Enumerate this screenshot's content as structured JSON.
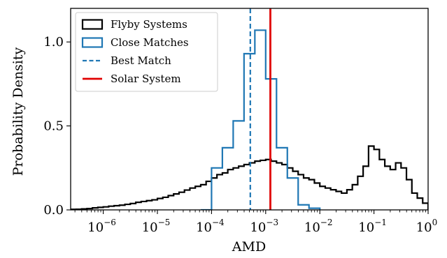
{
  "chart_data": {
    "type": "histogram",
    "xlabel": "AMD",
    "ylabel": "Probability Density",
    "xscale": "log",
    "xlim": [
      2.5e-07,
      1.0
    ],
    "ylim": [
      0,
      1.2
    ],
    "grid": false,
    "legend_position": "top-left",
    "x_ticks": [
      {
        "value": 1e-06,
        "base": "10",
        "exp": "−6"
      },
      {
        "value": 1e-05,
        "base": "10",
        "exp": "−5"
      },
      {
        "value": 0.0001,
        "base": "10",
        "exp": "−4"
      },
      {
        "value": 0.001,
        "base": "10",
        "exp": "−3"
      },
      {
        "value": 0.01,
        "base": "10",
        "exp": "−2"
      },
      {
        "value": 0.1,
        "base": "10",
        "exp": "−1"
      },
      {
        "value": 1,
        "base": "10",
        "exp": "0"
      }
    ],
    "y_ticks": [
      {
        "value": 0.0,
        "label": "0.0"
      },
      {
        "value": 0.5,
        "label": "0.5"
      },
      {
        "value": 1.0,
        "label": "1.0"
      }
    ],
    "series": [
      {
        "name": "Flyby Systems",
        "kind": "step",
        "color": "#000000",
        "log_edges": [
          -6.6,
          -6.5,
          -6.4,
          -6.3,
          -6.2,
          -6.1,
          -6.0,
          -5.9,
          -5.8,
          -5.7,
          -5.6,
          -5.5,
          -5.4,
          -5.3,
          -5.2,
          -5.1,
          -5.0,
          -4.9,
          -4.8,
          -4.7,
          -4.6,
          -4.5,
          -4.4,
          -4.3,
          -4.2,
          -4.1,
          -4.0,
          -3.9,
          -3.8,
          -3.7,
          -3.6,
          -3.5,
          -3.4,
          -3.3,
          -3.2,
          -3.1,
          -3.0,
          -2.9,
          -2.8,
          -2.7,
          -2.6,
          -2.5,
          -2.4,
          -2.3,
          -2.2,
          -2.1,
          -2.0,
          -1.9,
          -1.8,
          -1.7,
          -1.6,
          -1.5,
          -1.4,
          -1.3,
          -1.2,
          -1.1,
          -1.0,
          -0.9,
          -0.8,
          -0.7,
          -0.6,
          -0.5,
          -0.4,
          -0.3,
          -0.2,
          -0.1,
          0.0
        ],
        "values": [
          0.003,
          0.004,
          0.006,
          0.008,
          0.012,
          0.015,
          0.018,
          0.022,
          0.025,
          0.028,
          0.033,
          0.038,
          0.045,
          0.05,
          0.055,
          0.06,
          0.068,
          0.075,
          0.085,
          0.095,
          0.105,
          0.118,
          0.13,
          0.14,
          0.15,
          0.17,
          0.19,
          0.21,
          0.22,
          0.24,
          0.25,
          0.26,
          0.27,
          0.28,
          0.29,
          0.295,
          0.3,
          0.29,
          0.28,
          0.27,
          0.25,
          0.23,
          0.21,
          0.19,
          0.18,
          0.16,
          0.14,
          0.13,
          0.12,
          0.11,
          0.1,
          0.12,
          0.15,
          0.2,
          0.26,
          0.38,
          0.36,
          0.3,
          0.26,
          0.24,
          0.28,
          0.25,
          0.18,
          0.1,
          0.07,
          0.04
        ]
      },
      {
        "name": "Close Matches",
        "kind": "step",
        "color": "#1f77b4",
        "log_edges": [
          -4.2,
          -4.0,
          -3.8,
          -3.6,
          -3.4,
          -3.2,
          -3.0,
          -2.8,
          -2.6,
          -2.4,
          -2.2,
          -2.0
        ],
        "values": [
          0.0,
          0.25,
          0.37,
          0.53,
          0.93,
          1.07,
          0.78,
          0.37,
          0.19,
          0.03,
          0.01
        ]
      },
      {
        "name": "Best Match",
        "kind": "vline",
        "x": 0.00052,
        "color": "#1f77b4",
        "dash": "dashed"
      },
      {
        "name": "Solar System",
        "kind": "vline",
        "x": 0.00122,
        "color": "#e00000",
        "dash": "solid"
      }
    ]
  }
}
